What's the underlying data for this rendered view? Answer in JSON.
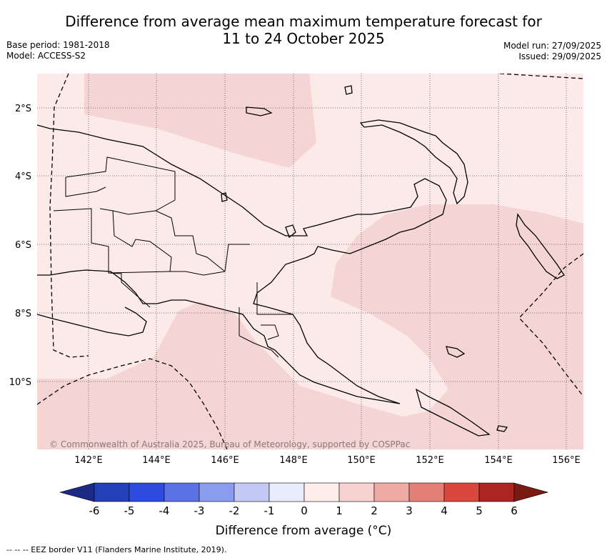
{
  "title": {
    "line1": "Difference from average mean maximum temperature forecast for",
    "line2": "11 to 24 October 2025"
  },
  "meta": {
    "base_period": "Base period: 1981-2018",
    "model": "Model: ACCESS-S2",
    "model_run": "Model run: 27/09/2025",
    "issued": "Issued: 29/09/2025"
  },
  "map": {
    "lat_labels": [
      "2°S",
      "4°S",
      "6°S",
      "8°S",
      "10°S"
    ],
    "lon_labels": [
      "142°E",
      "144°E",
      "146°E",
      "148°E",
      "150°E",
      "152°E",
      "154°E",
      "156°E"
    ],
    "copyright": "© Commonwealth of Australia 2025, Bureau of Meteorology, supported by COSPPac",
    "colors": {
      "band_0_1": "#fbeae8",
      "band_1_2": "#f4d5d4",
      "land_line": "#000000"
    }
  },
  "colorbar": {
    "ticks": [
      "-6",
      "-5",
      "-4",
      "-3",
      "-2",
      "-1",
      "0",
      "1",
      "2",
      "3",
      "4",
      "5",
      "6"
    ],
    "colors": [
      "#1c2a85",
      "#2340b8",
      "#2e4be0",
      "#5b72e6",
      "#8a9cee",
      "#c3caf5",
      "#e9ecfb",
      "#fdeeec",
      "#f6d2d1",
      "#efaaa5",
      "#e47f78",
      "#d9483d",
      "#ad2420",
      "#7b1a13"
    ],
    "title": "Difference from average (°C)"
  },
  "footer": "-- -- -- EEZ border V11 (Flanders Marine Institute, 2019)."
}
